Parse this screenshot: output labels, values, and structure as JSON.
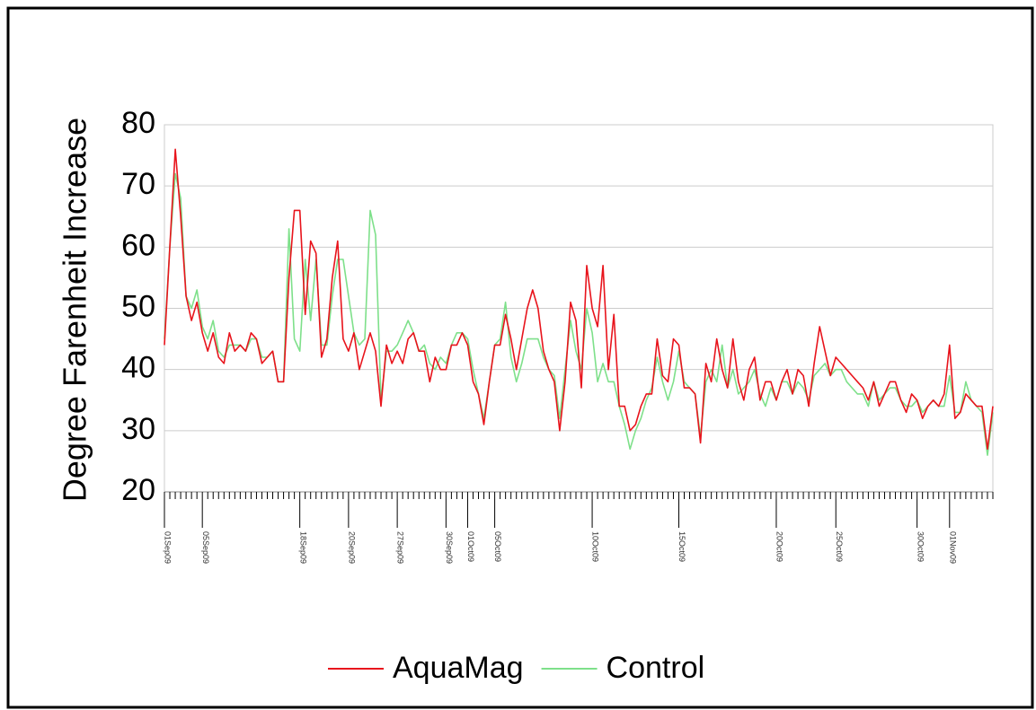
{
  "chart_data": {
    "type": "line",
    "y_label": "Degree Farenheit Increase",
    "categories": [
      "01Sep09",
      null,
      null,
      null,
      null,
      null,
      null,
      "05Sep09",
      null,
      null,
      null,
      null,
      null,
      null,
      null,
      null,
      null,
      null,
      null,
      null,
      null,
      null,
      null,
      null,
      null,
      "18Sep09",
      null,
      null,
      null,
      null,
      null,
      null,
      null,
      null,
      "20Sep09",
      null,
      null,
      null,
      null,
      null,
      null,
      null,
      null,
      "27Sep09",
      null,
      null,
      null,
      null,
      null,
      null,
      null,
      null,
      "30Sep09",
      null,
      null,
      null,
      "01Oct09",
      null,
      null,
      null,
      null,
      "05Oct09",
      null,
      null,
      null,
      null,
      null,
      null,
      null,
      null,
      null,
      null,
      null,
      null,
      null,
      null,
      null,
      null,
      null,
      "10Oct09",
      null,
      null,
      null,
      null,
      null,
      null,
      null,
      null,
      null,
      null,
      null,
      null,
      null,
      null,
      null,
      "15Oct09",
      null,
      null,
      null,
      null,
      null,
      null,
      null,
      null,
      null,
      null,
      null,
      null,
      null,
      null,
      null,
      null,
      null,
      "20Oct09",
      null,
      null,
      null,
      null,
      null,
      null,
      null,
      null,
      null,
      null,
      "25Oct09",
      null,
      null,
      null,
      null,
      null,
      null,
      null,
      null,
      null,
      null,
      null,
      null,
      null,
      null,
      "30Oct09",
      null,
      null,
      null,
      null,
      null,
      "01Nov09",
      null,
      null,
      null,
      null,
      null,
      null,
      null,
      null
    ],
    "series": [
      {
        "name": "AquaMag",
        "color": "#e8141c",
        "values": [
          44,
          60,
          76,
          65,
          52,
          48,
          51,
          46,
          43,
          46,
          42,
          41,
          46,
          43,
          44,
          43,
          46,
          45,
          41,
          42,
          43,
          38,
          38,
          55,
          66,
          66,
          49,
          61,
          59,
          42,
          45,
          55,
          61,
          45,
          43,
          46,
          40,
          43,
          46,
          43,
          34,
          44,
          41,
          43,
          41,
          45,
          46,
          43,
          43,
          38,
          42,
          40,
          40,
          44,
          44,
          46,
          44,
          38,
          36,
          31,
          38,
          44,
          44,
          49,
          45,
          40,
          45,
          50,
          53,
          50,
          43,
          40,
          38,
          30,
          38,
          51,
          48,
          37,
          57,
          50,
          47,
          57,
          40,
          49,
          34,
          34,
          30,
          31,
          34,
          36,
          36,
          45,
          39,
          38,
          45,
          44,
          37,
          37,
          36,
          28,
          41,
          38,
          45,
          40,
          37,
          45,
          38,
          35,
          40,
          42,
          35,
          38,
          38,
          35,
          38,
          40,
          36,
          40,
          39,
          34,
          41,
          47,
          43,
          39,
          42,
          41,
          40,
          39,
          38,
          37,
          35,
          38,
          34,
          36,
          38,
          38,
          35,
          33,
          36,
          35,
          32,
          34,
          35,
          34,
          36,
          44,
          32,
          33,
          36,
          35,
          34,
          34,
          27,
          34
        ]
      },
      {
        "name": "Control",
        "color": "#7ee08a",
        "values": [
          45,
          60,
          72,
          68,
          52,
          50,
          53,
          47,
          45,
          48,
          43,
          42,
          44,
          44,
          44,
          43,
          45,
          45,
          42,
          42,
          43,
          38,
          38,
          63,
          45,
          43,
          58,
          48,
          58,
          44,
          44,
          52,
          58,
          58,
          52,
          46,
          44,
          45,
          66,
          62,
          35,
          43,
          43,
          44,
          46,
          48,
          46,
          43,
          44,
          41,
          40,
          42,
          41,
          44,
          46,
          46,
          45,
          40,
          36,
          32,
          38,
          44,
          45,
          51,
          42,
          38,
          41,
          45,
          45,
          45,
          42,
          40,
          39,
          32,
          40,
          48,
          43,
          40,
          50,
          46,
          38,
          41,
          38,
          38,
          34,
          31,
          27,
          30,
          32,
          35,
          37,
          42,
          38,
          35,
          38,
          43,
          38,
          37,
          36,
          29,
          38,
          40,
          38,
          44,
          37,
          40,
          36,
          37,
          38,
          40,
          36,
          34,
          37,
          35,
          38,
          38,
          36,
          38,
          37,
          35,
          39,
          40,
          41,
          39,
          40,
          40,
          38,
          37,
          36,
          36,
          34,
          38,
          35,
          36,
          37,
          37,
          35,
          34,
          34,
          35,
          33,
          34,
          35,
          34,
          34,
          39,
          33,
          33,
          38,
          35,
          34,
          33,
          26,
          33
        ]
      }
    ],
    "ylim": [
      20,
      80
    ],
    "yticks": [
      20,
      30,
      40,
      50,
      60,
      70,
      80
    ],
    "grid": true,
    "legend": "bottom"
  }
}
